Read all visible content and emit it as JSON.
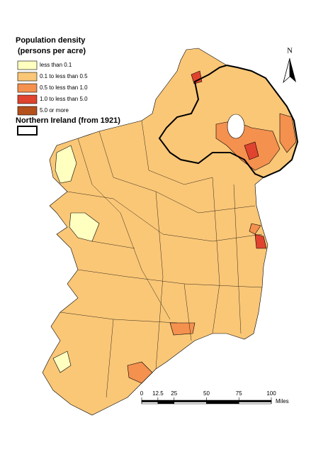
{
  "legend": {
    "title": "Population density",
    "subtitle": "(persons per acre)",
    "classes": [
      {
        "label": "less than 0.1",
        "color": "#ffffc0"
      },
      {
        "label": "0.1 to less than 0.5",
        "color": "#fac777"
      },
      {
        "label": "0.5 to less than 1.0",
        "color": "#f4914f"
      },
      {
        "label": "1.0 to less than 5.0",
        "color": "#e0442e"
      },
      {
        "label": "5.0 or more",
        "color": "#b4501c"
      }
    ],
    "boundary": "Northern Ireland (from 1921)"
  },
  "north": "N",
  "scale": {
    "ticks": [
      0,
      12.5,
      25,
      50,
      75,
      100
    ],
    "unit": "Miles"
  }
}
